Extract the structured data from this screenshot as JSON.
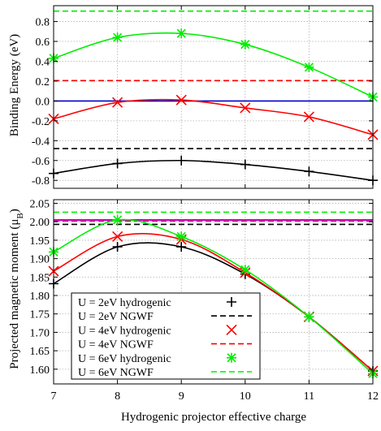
{
  "chart_data": {
    "type": "line",
    "xlabel": "Hydrogenic projector effective charge",
    "x_ticks": [
      "7",
      "8",
      "9",
      "10",
      "11",
      "12"
    ],
    "xlim": [
      7,
      12
    ],
    "colors": {
      "U2": "#000000",
      "U4": "#ff0000",
      "U6": "#00ee00",
      "zero_line": "#0000cc",
      "mid_line": "#cc00cc",
      "grid": "#b0b0b0"
    },
    "panels": [
      {
        "id": "binding",
        "ylabel": "Binding Energy (eV)",
        "ylim": [
          -0.88,
          0.96
        ],
        "y_ticks": [
          {
            "v": 0.8,
            "label": "0.8"
          },
          {
            "v": 0.6,
            "label": "0.6"
          },
          {
            "v": 0.4,
            "label": "0.4"
          },
          {
            "v": 0.2,
            "label": "0.2"
          },
          {
            "v": 0.0,
            "label": "0.0"
          },
          {
            "v": -0.2,
            "label": "-0.2"
          },
          {
            "v": -0.4,
            "label": "-0.4"
          },
          {
            "v": -0.6,
            "label": "-0.6"
          },
          {
            "v": -0.8,
            "label": "-0.8"
          }
        ],
        "grid": true,
        "series": [
          {
            "key": "U2",
            "marker": "plus",
            "x": [
              7,
              8,
              9,
              10,
              11,
              12
            ],
            "y": [
              -0.73,
              -0.63,
              -0.6,
              -0.64,
              -0.71,
              -0.8
            ]
          },
          {
            "key": "U4",
            "marker": "cross",
            "x": [
              7,
              8,
              9,
              10,
              11,
              12
            ],
            "y": [
              -0.18,
              -0.015,
              0.01,
              -0.07,
              -0.16,
              -0.34
            ]
          },
          {
            "key": "U6",
            "marker": "star",
            "x": [
              7,
              8,
              9,
              10,
              11,
              12
            ],
            "y": [
              0.43,
              0.64,
              0.68,
              0.57,
              0.34,
              0.04
            ]
          }
        ],
        "hlines": [
          {
            "key": "U2",
            "y": -0.48,
            "dashed": true
          },
          {
            "key": "U4",
            "y": 0.205,
            "dashed": true
          },
          {
            "key": "U6",
            "y": 0.905,
            "dashed": true
          },
          {
            "key": "zero_line",
            "y": 0.0,
            "dashed": false
          }
        ]
      },
      {
        "id": "moment",
        "ylabel": "Projected magnetic moment (μB)",
        "ylim": [
          1.56,
          2.06
        ],
        "y_ticks": [
          {
            "v": 2.05,
            "label": "2.05"
          },
          {
            "v": 2.0,
            "label": "2.00"
          },
          {
            "v": 1.95,
            "label": "1.95"
          },
          {
            "v": 1.9,
            "label": "1.90"
          },
          {
            "v": 1.85,
            "label": "1.85"
          },
          {
            "v": 1.8,
            "label": "1.80"
          },
          {
            "v": 1.75,
            "label": "1.75"
          },
          {
            "v": 1.7,
            "label": "1.70"
          },
          {
            "v": 1.65,
            "label": "1.65"
          },
          {
            "v": 1.6,
            "label": "1.60"
          }
        ],
        "grid": true,
        "series": [
          {
            "key": "U2",
            "marker": "plus",
            "x": [
              7,
              8,
              9,
              10,
              11,
              12
            ],
            "y": [
              1.832,
              1.932,
              1.932,
              1.858,
              1.742,
              1.595
            ]
          },
          {
            "key": "U4",
            "marker": "cross",
            "x": [
              7,
              8,
              9,
              10,
              11,
              12
            ],
            "y": [
              1.866,
              1.96,
              1.952,
              1.862,
              1.742,
              1.595
            ]
          },
          {
            "key": "U6",
            "marker": "star",
            "x": [
              7,
              8,
              9,
              10,
              11,
              12
            ],
            "y": [
              1.918,
              2.005,
              1.96,
              1.87,
              1.742,
              1.588
            ]
          }
        ],
        "hlines": [
          {
            "key": "U2",
            "y": 1.993,
            "dashed": true
          },
          {
            "key": "U4",
            "y": 2.002,
            "dashed": true
          },
          {
            "key": "U6",
            "y": 2.026,
            "dashed": true
          },
          {
            "key": "zero_line",
            "y": 2.005,
            "dashed": false
          },
          {
            "key": "mid_line",
            "y": 2.004,
            "dashed": false
          }
        ]
      }
    ],
    "legend": {
      "placement": "lower-left",
      "entries": [
        {
          "label": "U = 2eV hydrogenic",
          "key": "U2",
          "kind": "marker",
          "marker": "plus"
        },
        {
          "label": "U = 2eV NGWF",
          "key": "U2",
          "kind": "dash"
        },
        {
          "label": "U = 4eV hydrogenic",
          "key": "U4",
          "kind": "marker",
          "marker": "cross"
        },
        {
          "label": "U = 4eV NGWF",
          "key": "U4",
          "kind": "dash"
        },
        {
          "label": "U = 6eV hydrogenic",
          "key": "U6",
          "kind": "marker",
          "marker": "star"
        },
        {
          "label": "U = 6eV NGWF",
          "key": "U6",
          "kind": "dash"
        }
      ]
    }
  }
}
